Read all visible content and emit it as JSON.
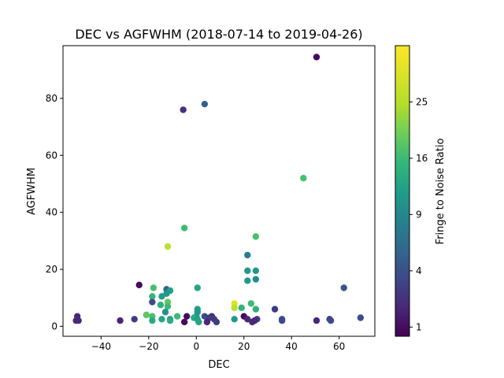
{
  "chart_data": {
    "type": "scatter",
    "title": "DEC vs AGFWHM (2018-07-14 to 2019-04-26)",
    "xlabel": "DEC",
    "ylabel": "AGFWHM",
    "xlim": [
      -56,
      75
    ],
    "ylim": [
      -3.5,
      98.5
    ],
    "xticks": [
      -40,
      -20,
      0,
      20,
      40,
      60
    ],
    "yticks": [
      0,
      20,
      40,
      60,
      80
    ],
    "colorbar": {
      "label": "Fringe to Noise Ratio",
      "scale": "sqrt",
      "range": [
        0.7,
        36
      ],
      "ticks": [
        1,
        4,
        9,
        16,
        25
      ],
      "colormap": "viridis"
    },
    "points": [
      {
        "x": 50.5,
        "y": 94.5,
        "c": 1
      },
      {
        "x": 3.5,
        "y": 78,
        "c": 6
      },
      {
        "x": -5.5,
        "y": 76,
        "c": 2.5
      },
      {
        "x": 45,
        "y": 52,
        "c": 20
      },
      {
        "x": -5,
        "y": 34.5,
        "c": 19
      },
      {
        "x": 25,
        "y": 31.5,
        "c": 20
      },
      {
        "x": -12,
        "y": 28,
        "c": 30
      },
      {
        "x": 21.5,
        "y": 25,
        "c": 9
      },
      {
        "x": 21.5,
        "y": 19.5,
        "c": 13
      },
      {
        "x": 25,
        "y": 19.5,
        "c": 13
      },
      {
        "x": 21.5,
        "y": 16,
        "c": 13
      },
      {
        "x": 25,
        "y": 16.5,
        "c": 11
      },
      {
        "x": -24,
        "y": 14.5,
        "c": 1
      },
      {
        "x": -18,
        "y": 13.5,
        "c": 20
      },
      {
        "x": 0.5,
        "y": 13.5,
        "c": 15
      },
      {
        "x": -12.5,
        "y": 13,
        "c": 6
      },
      {
        "x": -11,
        "y": 12.5,
        "c": 14
      },
      {
        "x": 62,
        "y": 13.5,
        "c": 5
      },
      {
        "x": -12.5,
        "y": 11.5,
        "c": 13
      },
      {
        "x": -18.5,
        "y": 10.5,
        "c": 18
      },
      {
        "x": -14.5,
        "y": 10.5,
        "c": 14
      },
      {
        "x": -18.5,
        "y": 8.5,
        "c": 4
      },
      {
        "x": -12,
        "y": 8.5,
        "c": 22
      },
      {
        "x": 16,
        "y": 8,
        "c": 33
      },
      {
        "x": 23,
        "y": 8,
        "c": 19
      },
      {
        "x": -15,
        "y": 7.5,
        "c": 17
      },
      {
        "x": -12,
        "y": 7,
        "c": 19
      },
      {
        "x": 16,
        "y": 6.5,
        "c": 30
      },
      {
        "x": 19,
        "y": 6.5,
        "c": 18
      },
      {
        "x": 25,
        "y": 6,
        "c": 17
      },
      {
        "x": 33,
        "y": 6,
        "c": 3
      },
      {
        "x": 0.5,
        "y": 6,
        "c": 14
      },
      {
        "x": 0.5,
        "y": 5,
        "c": 13
      },
      {
        "x": -13,
        "y": 5,
        "c": 12
      },
      {
        "x": -21,
        "y": 4,
        "c": 22
      },
      {
        "x": -18.5,
        "y": 3.5,
        "c": 20
      },
      {
        "x": -50,
        "y": 3.5,
        "c": 2
      },
      {
        "x": -8,
        "y": 3.5,
        "c": 19
      },
      {
        "x": -4,
        "y": 3.5,
        "c": 1
      },
      {
        "x": 0,
        "y": 3.5,
        "c": 13
      },
      {
        "x": 3.5,
        "y": 3.5,
        "c": 4
      },
      {
        "x": 6.5,
        "y": 3.5,
        "c": 2
      },
      {
        "x": 20,
        "y": 3.5,
        "c": 1
      },
      {
        "x": -1,
        "y": 3,
        "c": 16
      },
      {
        "x": 5.5,
        "y": 3,
        "c": 3
      },
      {
        "x": -26,
        "y": 2.5,
        "c": 3
      },
      {
        "x": -14.5,
        "y": 2.5,
        "c": 15
      },
      {
        "x": -11,
        "y": 2.5,
        "c": 13
      },
      {
        "x": 0.5,
        "y": 2.5,
        "c": 14
      },
      {
        "x": 7.5,
        "y": 2.5,
        "c": 3
      },
      {
        "x": 16,
        "y": 2.5,
        "c": 13
      },
      {
        "x": 21.5,
        "y": 2.5,
        "c": 2
      },
      {
        "x": 25.5,
        "y": 2.5,
        "c": 3
      },
      {
        "x": 36,
        "y": 2.5,
        "c": 4
      },
      {
        "x": 56,
        "y": 2.5,
        "c": 3
      },
      {
        "x": 69,
        "y": 3,
        "c": 4
      },
      {
        "x": -50.5,
        "y": 2,
        "c": 2
      },
      {
        "x": -49.5,
        "y": 2,
        "c": 2
      },
      {
        "x": -32,
        "y": 2,
        "c": 2
      },
      {
        "x": -18.5,
        "y": 2,
        "c": 16
      },
      {
        "x": -11,
        "y": 2,
        "c": 16
      },
      {
        "x": -5,
        "y": 1.5,
        "c": 1
      },
      {
        "x": 4.5,
        "y": 1.5,
        "c": 2
      },
      {
        "x": 8.5,
        "y": 1.5,
        "c": 3
      },
      {
        "x": 23.5,
        "y": 1.5,
        "c": 2
      },
      {
        "x": 24.5,
        "y": 2,
        "c": 2
      },
      {
        "x": 36,
        "y": 2,
        "c": 4
      },
      {
        "x": 50.5,
        "y": 2,
        "c": 2
      },
      {
        "x": 56.5,
        "y": 2,
        "c": 4
      },
      {
        "x": 1,
        "y": 1.5,
        "c": 15
      }
    ]
  }
}
